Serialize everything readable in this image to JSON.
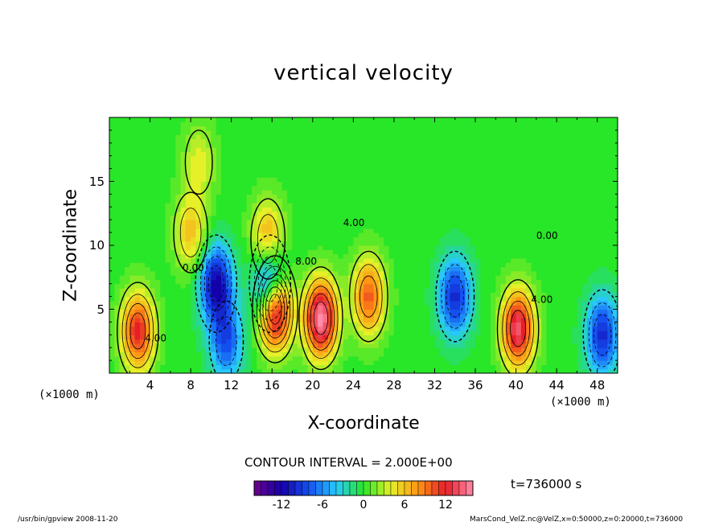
{
  "chart_data": {
    "type": "heatmap",
    "title": "vertical velocity",
    "xlabel": "X-coordinate",
    "ylabel": "Z-coordinate",
    "x_unit": "(×1000 m)",
    "xlim": [
      0,
      50
    ],
    "ylim": [
      0,
      20
    ],
    "x_ticks": [
      "4",
      "8",
      "12",
      "16",
      "20",
      "24",
      "28",
      "32",
      "36",
      "40",
      "44",
      "48"
    ],
    "y_ticks": [
      "5",
      "10",
      "15"
    ],
    "x_tick_values": [
      4,
      8,
      12,
      16,
      20,
      24,
      28,
      32,
      36,
      40,
      44,
      48
    ],
    "y_tick_values": [
      5,
      10,
      15
    ],
    "contour_interval": "CONTOUR INTERVAL = 2.000E+00",
    "contour_labels": [
      "4.00",
      "0.00",
      "8.00"
    ],
    "colorbar": {
      "min": -16,
      "max": 16,
      "tick_labels": [
        "-12",
        "-6",
        "0",
        "6",
        "12"
      ],
      "tick_values": [
        -12,
        -6,
        0,
        6,
        12
      ]
    },
    "features": [
      {
        "x": 2.8,
        "z": 3.3,
        "w": 12
      },
      {
        "x": 10.5,
        "z": 7.0,
        "w": -12
      },
      {
        "x": 11.5,
        "z": 2.5,
        "w": -8
      },
      {
        "x": 15.8,
        "z": 7.0,
        "w": -14
      },
      {
        "x": 16.3,
        "z": 5.0,
        "w": 18
      },
      {
        "x": 20.8,
        "z": 4.3,
        "w": 16
      },
      {
        "x": 25.5,
        "z": 6.0,
        "w": 10
      },
      {
        "x": 34.0,
        "z": 6.0,
        "w": -10
      },
      {
        "x": 40.2,
        "z": 3.5,
        "w": 14
      },
      {
        "x": 48.5,
        "z": 3.0,
        "w": -10
      },
      {
        "x": 15.6,
        "z": 10.5,
        "w": 8
      },
      {
        "x": 8.0,
        "z": 11.0,
        "w": 6
      },
      {
        "x": 8.8,
        "z": 16.5,
        "w": 4
      }
    ]
  },
  "time_label": "t=736000 s",
  "footer": {
    "left": "/usr/bin/gpview   2008-11-20",
    "right": "MarsCond_VelZ.nc@VelZ,x=0:50000,z=0:20000,t=736000"
  }
}
